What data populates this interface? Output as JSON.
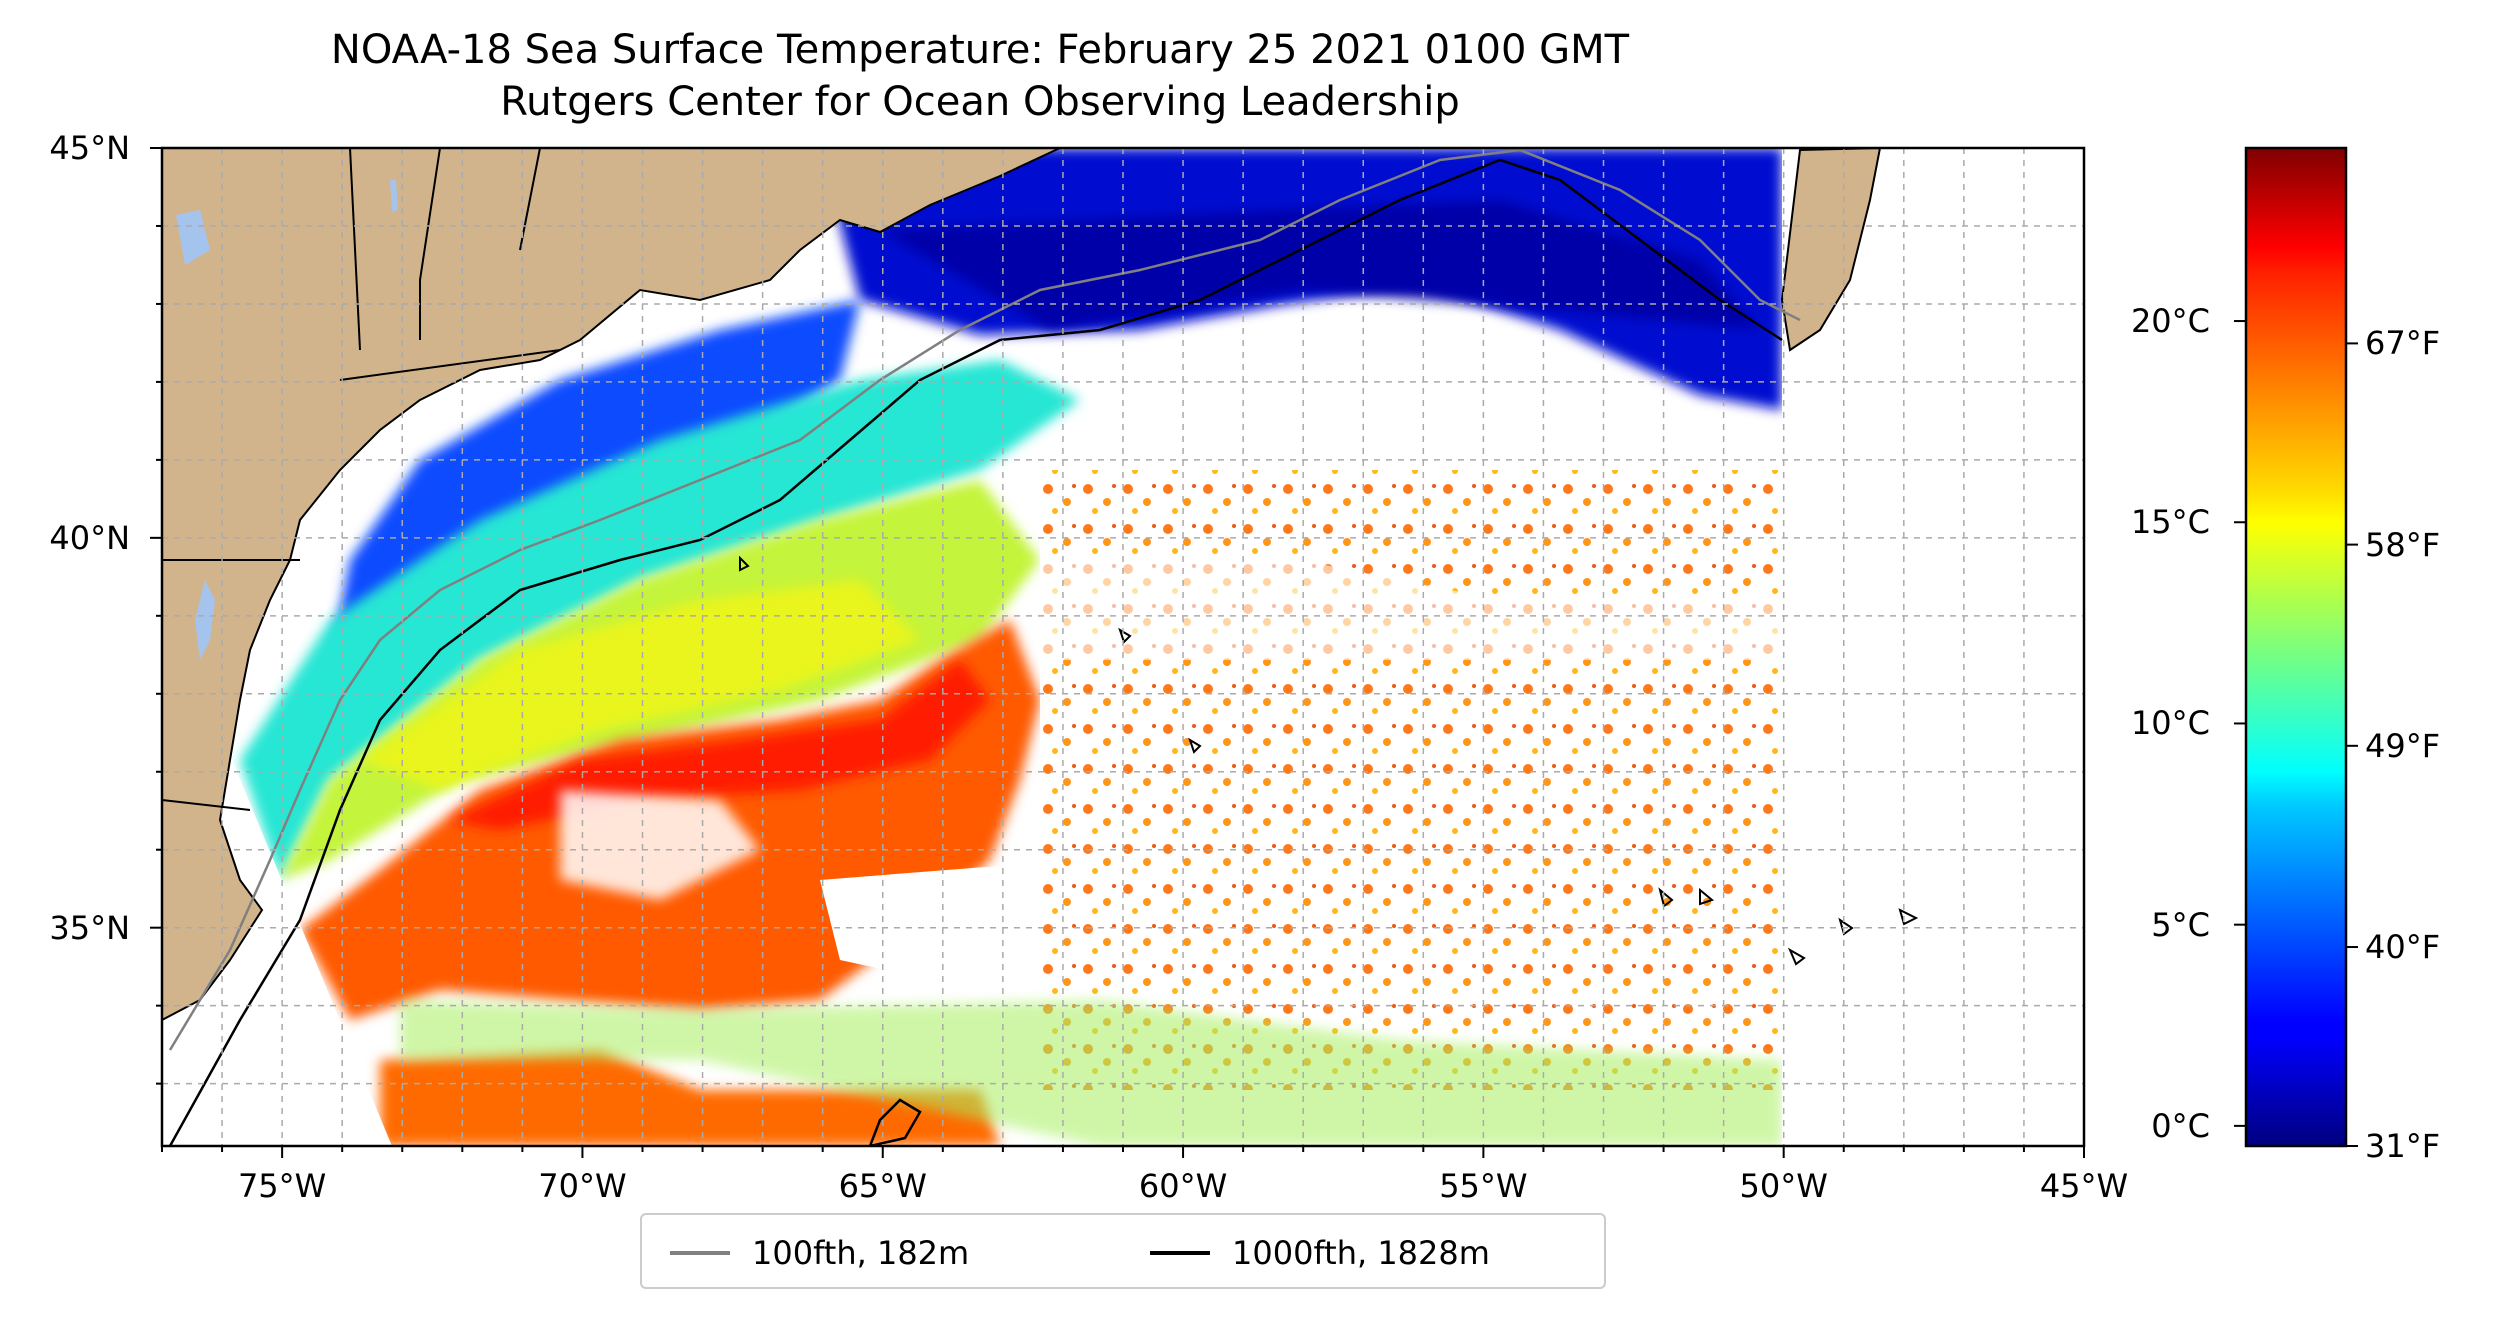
{
  "title": {
    "line1": "NOAA-18 Sea Surface Temperature: February 25 2021 0100 GMT",
    "line2": "Rutgers Center for Ocean Observing Leadership"
  },
  "map": {
    "lon_range": [
      -77,
      -45
    ],
    "lat_range": [
      32.2,
      45
    ],
    "lat_ticks": [
      {
        "value": 45,
        "label": "45°N"
      },
      {
        "value": 40,
        "label": "40°N"
      },
      {
        "value": 35,
        "label": "35°N"
      }
    ],
    "lon_ticks": [
      {
        "value": -75,
        "label": "75°W"
      },
      {
        "value": -70,
        "label": "70°W"
      },
      {
        "value": -65,
        "label": "65°W"
      },
      {
        "value": -60,
        "label": "60°W"
      },
      {
        "value": -55,
        "label": "55°W"
      },
      {
        "value": -50,
        "label": "50°W"
      },
      {
        "value": -45,
        "label": "45°W"
      }
    ],
    "gridlines": "dashed, 1° spacing",
    "land_color": "#d2b48c",
    "water_body_color": "#a4c4ee"
  },
  "colorbar": {
    "colormap": "jet",
    "celsius_range": [
      -0.5,
      24.3
    ],
    "celsius_ticks": [
      {
        "value": 0,
        "label": "0°C"
      },
      {
        "value": 5,
        "label": "5°C"
      },
      {
        "value": 10,
        "label": "10°C"
      },
      {
        "value": 15,
        "label": "15°C"
      },
      {
        "value": 20,
        "label": "20°C"
      }
    ],
    "fahrenheit_ticks": [
      {
        "value": 31,
        "label": "31°F"
      },
      {
        "value": 40,
        "label": "40°F"
      },
      {
        "value": 49,
        "label": "49°F"
      },
      {
        "value": 58,
        "label": "58°F"
      },
      {
        "value": 67,
        "label": "67°F"
      }
    ]
  },
  "legend": {
    "items": [
      {
        "label": "100fth, 182m",
        "color": "#808080"
      },
      {
        "label": "1000fth, 1828m",
        "color": "#000000"
      }
    ],
    "placement": "bottom-center"
  }
}
